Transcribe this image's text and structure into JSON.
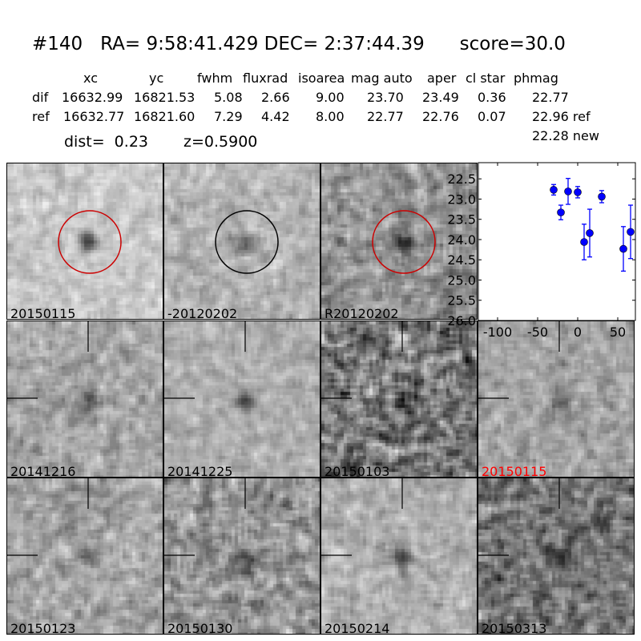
{
  "header": {
    "title": "#140   RA= 9:58:41.429 DEC= 2:37:44.39      score=30.0",
    "columns": [
      "xc",
      "yc",
      "fwhm",
      "fluxrad",
      "isoarea",
      "mag auto",
      "aper",
      "cl star",
      "phmag"
    ],
    "rows": [
      {
        "label": "dif",
        "values": [
          "16632.99",
          "16821.53",
          "5.08",
          "2.66",
          "9.00",
          "23.70",
          "23.49",
          "0.36",
          "22.77"
        ]
      },
      {
        "label": "ref",
        "values": [
          "16632.77",
          "16821.60",
          "7.29",
          "4.42",
          "8.00",
          "22.77",
          "22.76",
          "0.07",
          "22.96 ref"
        ]
      }
    ],
    "extra_phmag": "22.28 new",
    "dist": "dist=  0.23",
    "z": "z=0.5900"
  },
  "stamps": [
    {
      "label": "20150115",
      "marker": "circle",
      "marker_color": "#cc0000",
      "label_color": "#000000"
    },
    {
      "label": "-20120202",
      "marker": "circle",
      "marker_color": "#000000",
      "label_color": "#000000"
    },
    {
      "label": "R20120202",
      "marker": "circle",
      "marker_color": "#cc0000",
      "label_color": "#000000"
    },
    {
      "label": "20141216",
      "marker": "crosshair",
      "label_color": "#000000"
    },
    {
      "label": "20141225",
      "marker": "crosshair",
      "label_color": "#000000"
    },
    {
      "label": "20150103",
      "marker": "crosshair",
      "label_color": "#000000"
    },
    {
      "label": "20150115",
      "marker": "crosshair",
      "label_color": "#ff0000"
    },
    {
      "label": "20150123",
      "marker": "crosshair",
      "label_color": "#000000"
    },
    {
      "label": "20150130",
      "marker": "crosshair",
      "label_color": "#000000"
    },
    {
      "label": "20150214",
      "marker": "crosshair",
      "label_color": "#000000"
    },
    {
      "label": "20150313",
      "marker": "crosshair",
      "label_color": "#000000"
    }
  ],
  "chart_data": {
    "type": "scatter",
    "title": "",
    "xlabel": "",
    "ylabel": "",
    "xlim": [
      -124,
      72
    ],
    "ylim": [
      26.0,
      22.1
    ],
    "y_inverted": true,
    "grid": false,
    "color": "#0000ff",
    "x_ticks": [
      "-100",
      "-50",
      "0",
      "50"
    ],
    "x_tick_values": [
      -100,
      -50,
      0,
      50
    ],
    "y_ticks": [
      "22.5",
      "23.0",
      "23.5",
      "24.0",
      "24.5",
      "25.0",
      "25.5",
      "26.0"
    ],
    "y_tick_values": [
      22.5,
      23.0,
      23.5,
      24.0,
      24.5,
      25.0,
      25.5,
      26.0
    ],
    "points": [
      {
        "x": -30,
        "y": 22.77,
        "err": 0.13
      },
      {
        "x": -21,
        "y": 23.33,
        "err": 0.18
      },
      {
        "x": -12,
        "y": 22.81,
        "err": 0.32
      },
      {
        "x": 0,
        "y": 22.83,
        "err": 0.14
      },
      {
        "x": 8,
        "y": 24.06,
        "err": 0.44
      },
      {
        "x": 15,
        "y": 23.84,
        "err": 0.59
      },
      {
        "x": 30,
        "y": 22.94,
        "err": 0.15
      },
      {
        "x": 57,
        "y": 24.23,
        "err": 0.55
      },
      {
        "x": 66,
        "y": 23.81,
        "err": 0.66
      }
    ]
  }
}
